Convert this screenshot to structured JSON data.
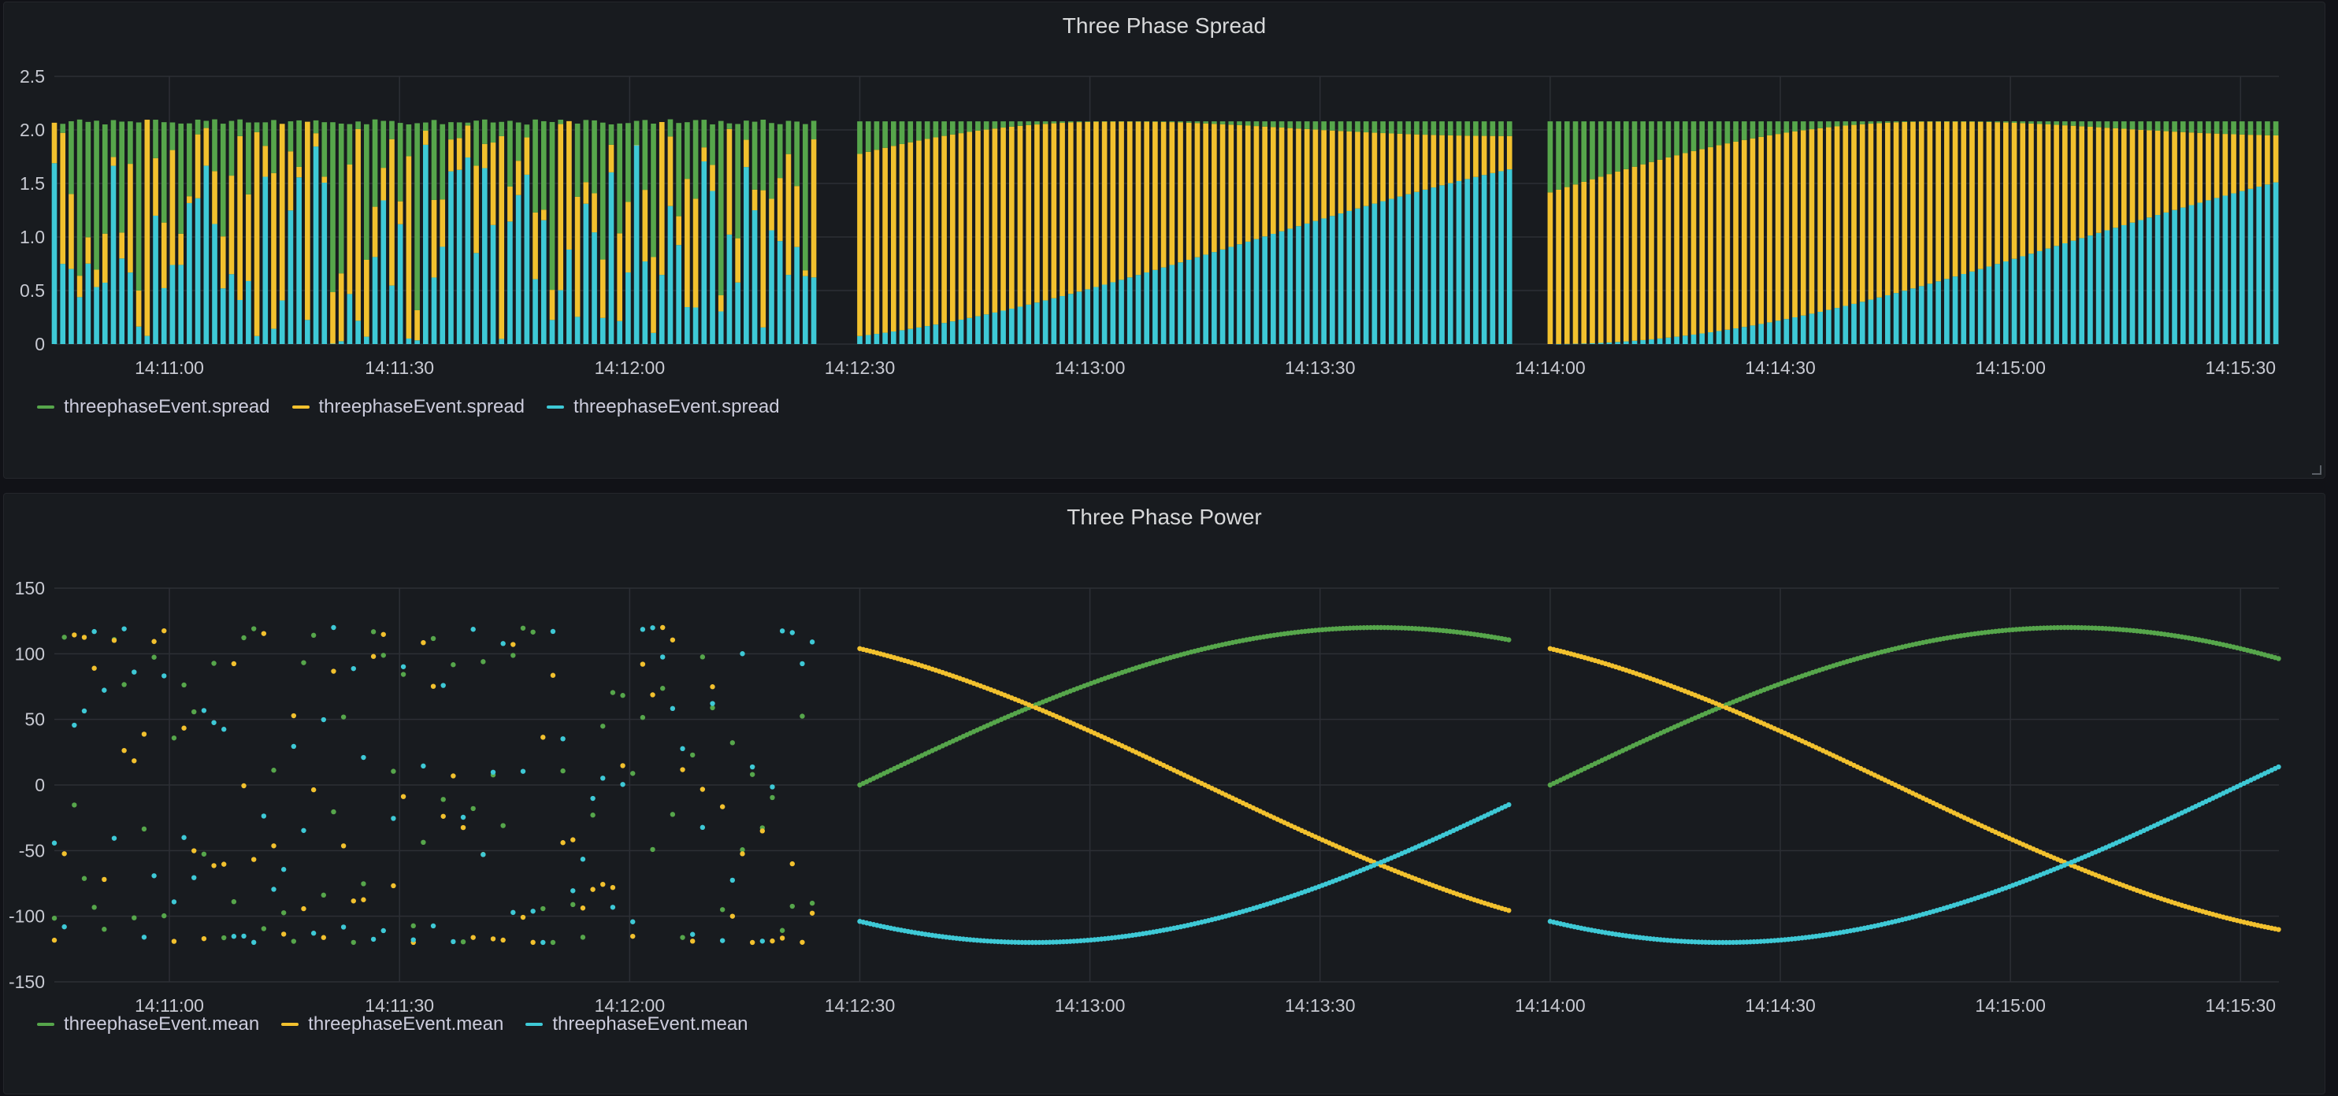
{
  "colors": {
    "green": "#56a64b",
    "yellow": "#f2c12e",
    "cyan": "#3ec9d6",
    "grid": "#2c2f35",
    "tick": "#c7c9d1",
    "panel": "#181b1f"
  },
  "chart_data": [
    {
      "type": "bar",
      "stacked": true,
      "title": "Three Phase Spread",
      "xlabel": "",
      "ylabel": "",
      "ylim": [
        0,
        2.5
      ],
      "yticks": [
        "0",
        "0.5",
        "1.0",
        "1.5",
        "2.0",
        "2.5"
      ],
      "xlim": [
        "14:10:45",
        "14:15:35"
      ],
      "xticks": [
        "14:11:00",
        "14:11:30",
        "14:12:00",
        "14:12:30",
        "14:13:00",
        "14:13:30",
        "14:14:00",
        "14:14:30",
        "14:15:00",
        "14:15:30"
      ],
      "grid": true,
      "legend_position": "bottom-left",
      "segments": [
        {
          "start": "14:10:45",
          "end": "14:12:25",
          "pattern": "noisy"
        },
        {
          "start": "14:12:30",
          "end": "14:13:55",
          "pattern": "smooth"
        },
        {
          "start": "14:14:00",
          "end": "14:15:35",
          "pattern": "smooth"
        }
      ],
      "series": [
        {
          "name": "threephaseEvent.spread",
          "color": "#56a64b"
        },
        {
          "name": "threephaseEvent.spread",
          "color": "#f2c12e"
        },
        {
          "name": "threephaseEvent.spread",
          "color": "#3ec9d6"
        }
      ]
    },
    {
      "type": "scatter",
      "title": "Three Phase Power",
      "xlabel": "",
      "ylabel": "",
      "ylim": [
        -150,
        150
      ],
      "yticks": [
        "-150",
        "-100",
        "-50",
        "0",
        "50",
        "100",
        "150"
      ],
      "xlim": [
        "14:10:45",
        "14:15:35"
      ],
      "xticks": [
        "14:11:00",
        "14:11:30",
        "14:12:00",
        "14:12:30",
        "14:13:00",
        "14:13:30",
        "14:14:00",
        "14:14:30",
        "14:15:00",
        "14:15:30"
      ],
      "grid": true,
      "legend_position": "bottom-left",
      "amplitude": 120,
      "segments": [
        {
          "start": "14:10:45",
          "end": "14:12:25",
          "pattern": "noisy"
        },
        {
          "start": "14:12:30",
          "end": "14:13:55",
          "pattern": "smooth"
        },
        {
          "start": "14:14:00",
          "end": "14:15:35",
          "pattern": "smooth"
        }
      ],
      "series": [
        {
          "name": "threephaseEvent.mean",
          "color": "#56a64b"
        },
        {
          "name": "threephaseEvent.mean",
          "color": "#f2c12e"
        },
        {
          "name": "threephaseEvent.mean",
          "color": "#3ec9d6"
        }
      ]
    }
  ]
}
